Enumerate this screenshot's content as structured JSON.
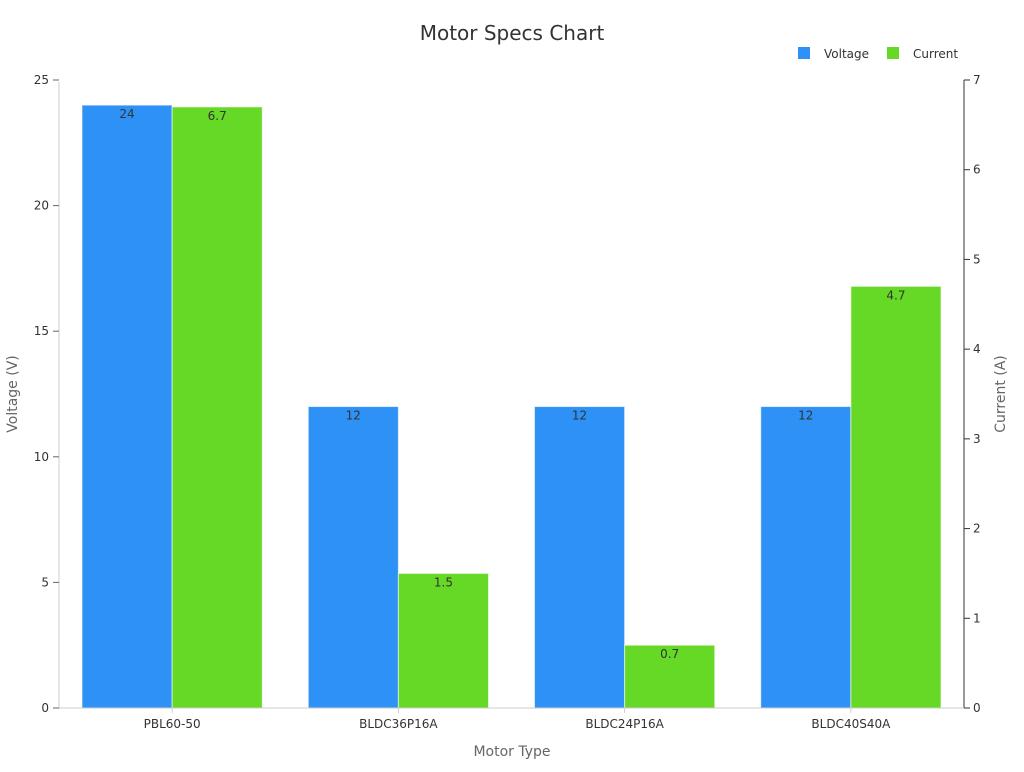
{
  "chart_data": {
    "type": "bar",
    "title": "Motor Specs Chart",
    "xlabel": "Motor Type",
    "ylabel": "Voltage (V)",
    "y2label": "Current (A)",
    "categories": [
      "PBL60-50",
      "BLDC36P16A",
      "BLDC24P16A",
      "BLDC40S40A"
    ],
    "series": [
      {
        "name": "Voltage",
        "axis": "left",
        "color": "#2e91f5",
        "values": [
          24,
          12,
          12,
          12
        ],
        "labels": [
          "24",
          "12",
          "12",
          "12"
        ]
      },
      {
        "name": "Current",
        "axis": "right",
        "color": "#66d926",
        "values": [
          6.7,
          1.5,
          0.7,
          4.7
        ],
        "labels": [
          "6.7",
          "1.5",
          "0.7",
          "4.7"
        ]
      }
    ],
    "ylim": [
      0,
      25
    ],
    "y2lim": [
      0,
      7
    ],
    "yticks": [
      "0",
      "5",
      "10",
      "15",
      "20",
      "25"
    ],
    "y2ticks": [
      "0",
      "1",
      "2",
      "3",
      "4",
      "5",
      "6",
      "7"
    ],
    "legend_position": "top-right",
    "grid": false
  }
}
